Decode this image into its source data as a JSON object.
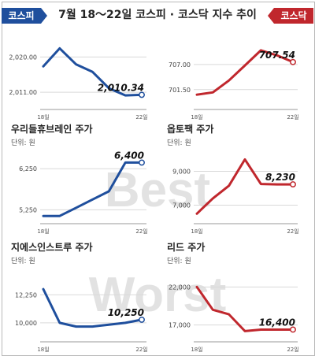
{
  "header": {
    "title": "7월 18～22일 코스피 · 코스닥 지수 추이",
    "left_tag": "코스피",
    "right_tag": "코스닥"
  },
  "watermark": {
    "best": "Best",
    "worst": "Worst"
  },
  "colors": {
    "blue": "#1f4f9d",
    "red": "#c0272d",
    "grid": "#d9d9d9"
  },
  "panels": [
    {
      "title": "",
      "unit": ""
    },
    {
      "title": "",
      "unit": ""
    },
    {
      "title": "우리들휴브레인 주가",
      "unit": "단위: 원"
    },
    {
      "title": "옵토팩 주가",
      "unit": "단위: 원"
    },
    {
      "title": "지에스인스트루 주가",
      "unit": "단위: 원"
    },
    {
      "title": "리드 주가",
      "unit": "단위: 원"
    }
  ],
  "chart_data": [
    {
      "type": "line",
      "title": "",
      "series_color": "blue",
      "x": [
        "18일",
        "",
        "",
        "",
        "",
        "",
        "22일"
      ],
      "xticks": [
        "18일",
        "22일"
      ],
      "values": [
        2017.6,
        2022.2,
        2018.1,
        2016.2,
        2012.0,
        2010.2,
        2010.34
      ],
      "ylim": [
        2007.0,
        2024.5
      ],
      "yticks": [
        2011.0,
        2020.0
      ],
      "ytick_labels": [
        "2,011.00",
        "2,020.00"
      ],
      "end_label": "2,010.34"
    },
    {
      "type": "line",
      "title": "",
      "series_color": "red",
      "x": [
        "18일",
        "",
        "",
        "",
        "",
        "",
        "22일"
      ],
      "xticks": [
        "18일",
        "22일"
      ],
      "values": [
        700.4,
        700.9,
        703.5,
        706.8,
        710.1,
        709.0,
        707.54
      ],
      "ylim": [
        697.5,
        712.5
      ],
      "yticks": [
        701.5,
        707.0
      ],
      "ytick_labels": [
        "701.50",
        "707.00"
      ],
      "end_label": "707.54"
    },
    {
      "type": "line",
      "title": "우리들휴브레인 주가",
      "series_color": "blue",
      "x": [
        "18일",
        "",
        "",
        "",
        "",
        "",
        "22일"
      ],
      "xticks": [
        "18일",
        "22일"
      ],
      "values": [
        5100,
        5100,
        5300,
        5500,
        5700,
        6400,
        6400
      ],
      "ylim": [
        4950,
        6600
      ],
      "yticks": [
        5250,
        6250
      ],
      "ytick_labels": [
        "5,250",
        "6,250"
      ],
      "end_label": "6,400"
    },
    {
      "type": "line",
      "title": "옵토팩 주가",
      "series_color": "red",
      "x": [
        "18일",
        "",
        "",
        "",
        "",
        "",
        "22일"
      ],
      "xticks": [
        "18일",
        "22일"
      ],
      "values": [
        6500,
        7400,
        8150,
        9700,
        8250,
        8230,
        8230
      ],
      "ylim": [
        6000,
        10000
      ],
      "yticks": [
        7000,
        9000
      ],
      "ytick_labels": [
        "7,000",
        "9,000"
      ],
      "end_label": "8,230"
    },
    {
      "type": "line",
      "title": "지에스인스트루 주가",
      "series_color": "blue",
      "x": [
        "18일",
        "",
        "",
        "",
        "",
        "",
        "22일"
      ],
      "xticks": [
        "18일",
        "22일"
      ],
      "values": [
        12700,
        10000,
        9700,
        9700,
        9850,
        10000,
        10250
      ],
      "ylim": [
        8600,
        14100
      ],
      "yticks": [
        10000,
        12250
      ],
      "ytick_labels": [
        "10,000",
        "12,250"
      ],
      "end_label": "10,250"
    },
    {
      "type": "line",
      "title": "리드 주가",
      "series_color": "red",
      "x": [
        "18일",
        "",
        "",
        "",
        "",
        "",
        "22일"
      ],
      "xticks": [
        "18일",
        "22일"
      ],
      "values": [
        22000,
        19000,
        18400,
        16200,
        16400,
        16400,
        16400
      ],
      "ylim": [
        15000,
        24000
      ],
      "yticks": [
        17000,
        22000
      ],
      "ytick_labels": [
        "17,000",
        "22,000"
      ],
      "end_label": "16,400"
    }
  ]
}
